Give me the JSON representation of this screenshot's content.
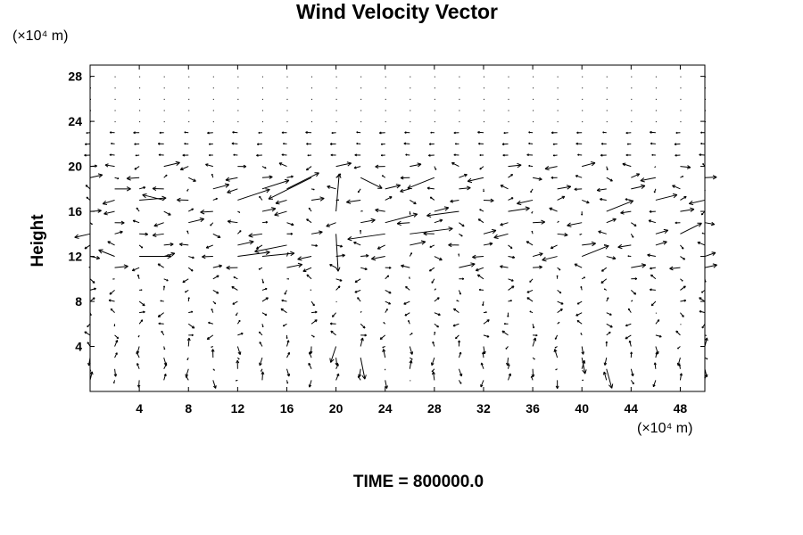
{
  "chart_data": {
    "type": "vector-field",
    "title": "Wind Velocity Vector",
    "ylabel": "Height",
    "xlabel": "",
    "x_unit": "(×10⁴ m)",
    "y_unit": "(×10⁴ m)",
    "annotation": "TIME = 800000.0",
    "xlim": [
      0,
      50
    ],
    "ylim": [
      0,
      29
    ],
    "x_ticks": [
      4,
      8,
      12,
      16,
      20,
      24,
      28,
      32,
      36,
      40,
      44,
      48
    ],
    "y_ticks": [
      4,
      8,
      12,
      16,
      20,
      24,
      28
    ],
    "grid_spacing": {
      "dx": 2,
      "dy": 1
    },
    "grid_x_range": [
      0,
      50
    ],
    "grid_y_range": [
      1,
      28
    ],
    "vectors": [
      {
        "x": 2,
        "y": 18,
        "u": 1.5,
        "v": 0
      },
      {
        "x": 4,
        "y": 17,
        "u": 2.5,
        "v": 0.2
      },
      {
        "x": 6,
        "y": 17,
        "u": -2,
        "v": 0.5
      },
      {
        "x": 10,
        "y": 18,
        "u": 1.5,
        "v": 0.4
      },
      {
        "x": 12,
        "y": 17,
        "u": 3,
        "v": 1
      },
      {
        "x": 14,
        "y": 18,
        "u": 2.5,
        "v": 0.8
      },
      {
        "x": 16,
        "y": 18,
        "u": 3,
        "v": 1.5
      },
      {
        "x": 18,
        "y": 19,
        "u": -4,
        "v": -2
      },
      {
        "x": 20,
        "y": 16,
        "u": 0.3,
        "v": 3.5
      },
      {
        "x": 20,
        "y": 14,
        "u": 0.2,
        "v": -3.5
      },
      {
        "x": 22,
        "y": 19,
        "u": 2,
        "v": -1
      },
      {
        "x": 24,
        "y": 15,
        "u": 3,
        "v": 0.8
      },
      {
        "x": 26,
        "y": 14,
        "u": 4,
        "v": 0.5
      },
      {
        "x": 28,
        "y": 19,
        "u": -2.5,
        "v": -1
      },
      {
        "x": 4,
        "y": 12,
        "u": 3,
        "v": 0
      },
      {
        "x": 2,
        "y": 12,
        "u": -1.5,
        "v": 0.6
      },
      {
        "x": 12,
        "y": 12,
        "u": 3,
        "v": 0.4
      },
      {
        "x": 14,
        "y": 12,
        "u": 3,
        "v": 0.3
      },
      {
        "x": 16,
        "y": 13,
        "u": -3,
        "v": -0.6
      },
      {
        "x": 24,
        "y": 14,
        "u": -3.5,
        "v": -0.5
      },
      {
        "x": 30,
        "y": 16,
        "u": -3,
        "v": -0.4
      },
      {
        "x": 34,
        "y": 16,
        "u": 2,
        "v": 0.3
      },
      {
        "x": 42,
        "y": 16,
        "u": 2.5,
        "v": 1
      },
      {
        "x": 46,
        "y": 17,
        "u": 2,
        "v": 0.5
      },
      {
        "x": 48,
        "y": 14,
        "u": 2,
        "v": 1
      },
      {
        "x": 40,
        "y": 12,
        "u": 2.5,
        "v": 1
      },
      {
        "x": 20,
        "y": 4,
        "u": -0.5,
        "v": -1.5
      },
      {
        "x": 22,
        "y": 3,
        "u": 0.4,
        "v": -2
      },
      {
        "x": 40,
        "y": 3,
        "u": 0.3,
        "v": -1.5
      },
      {
        "x": 42,
        "y": 2,
        "u": 0.5,
        "v": -1.8
      }
    ]
  }
}
